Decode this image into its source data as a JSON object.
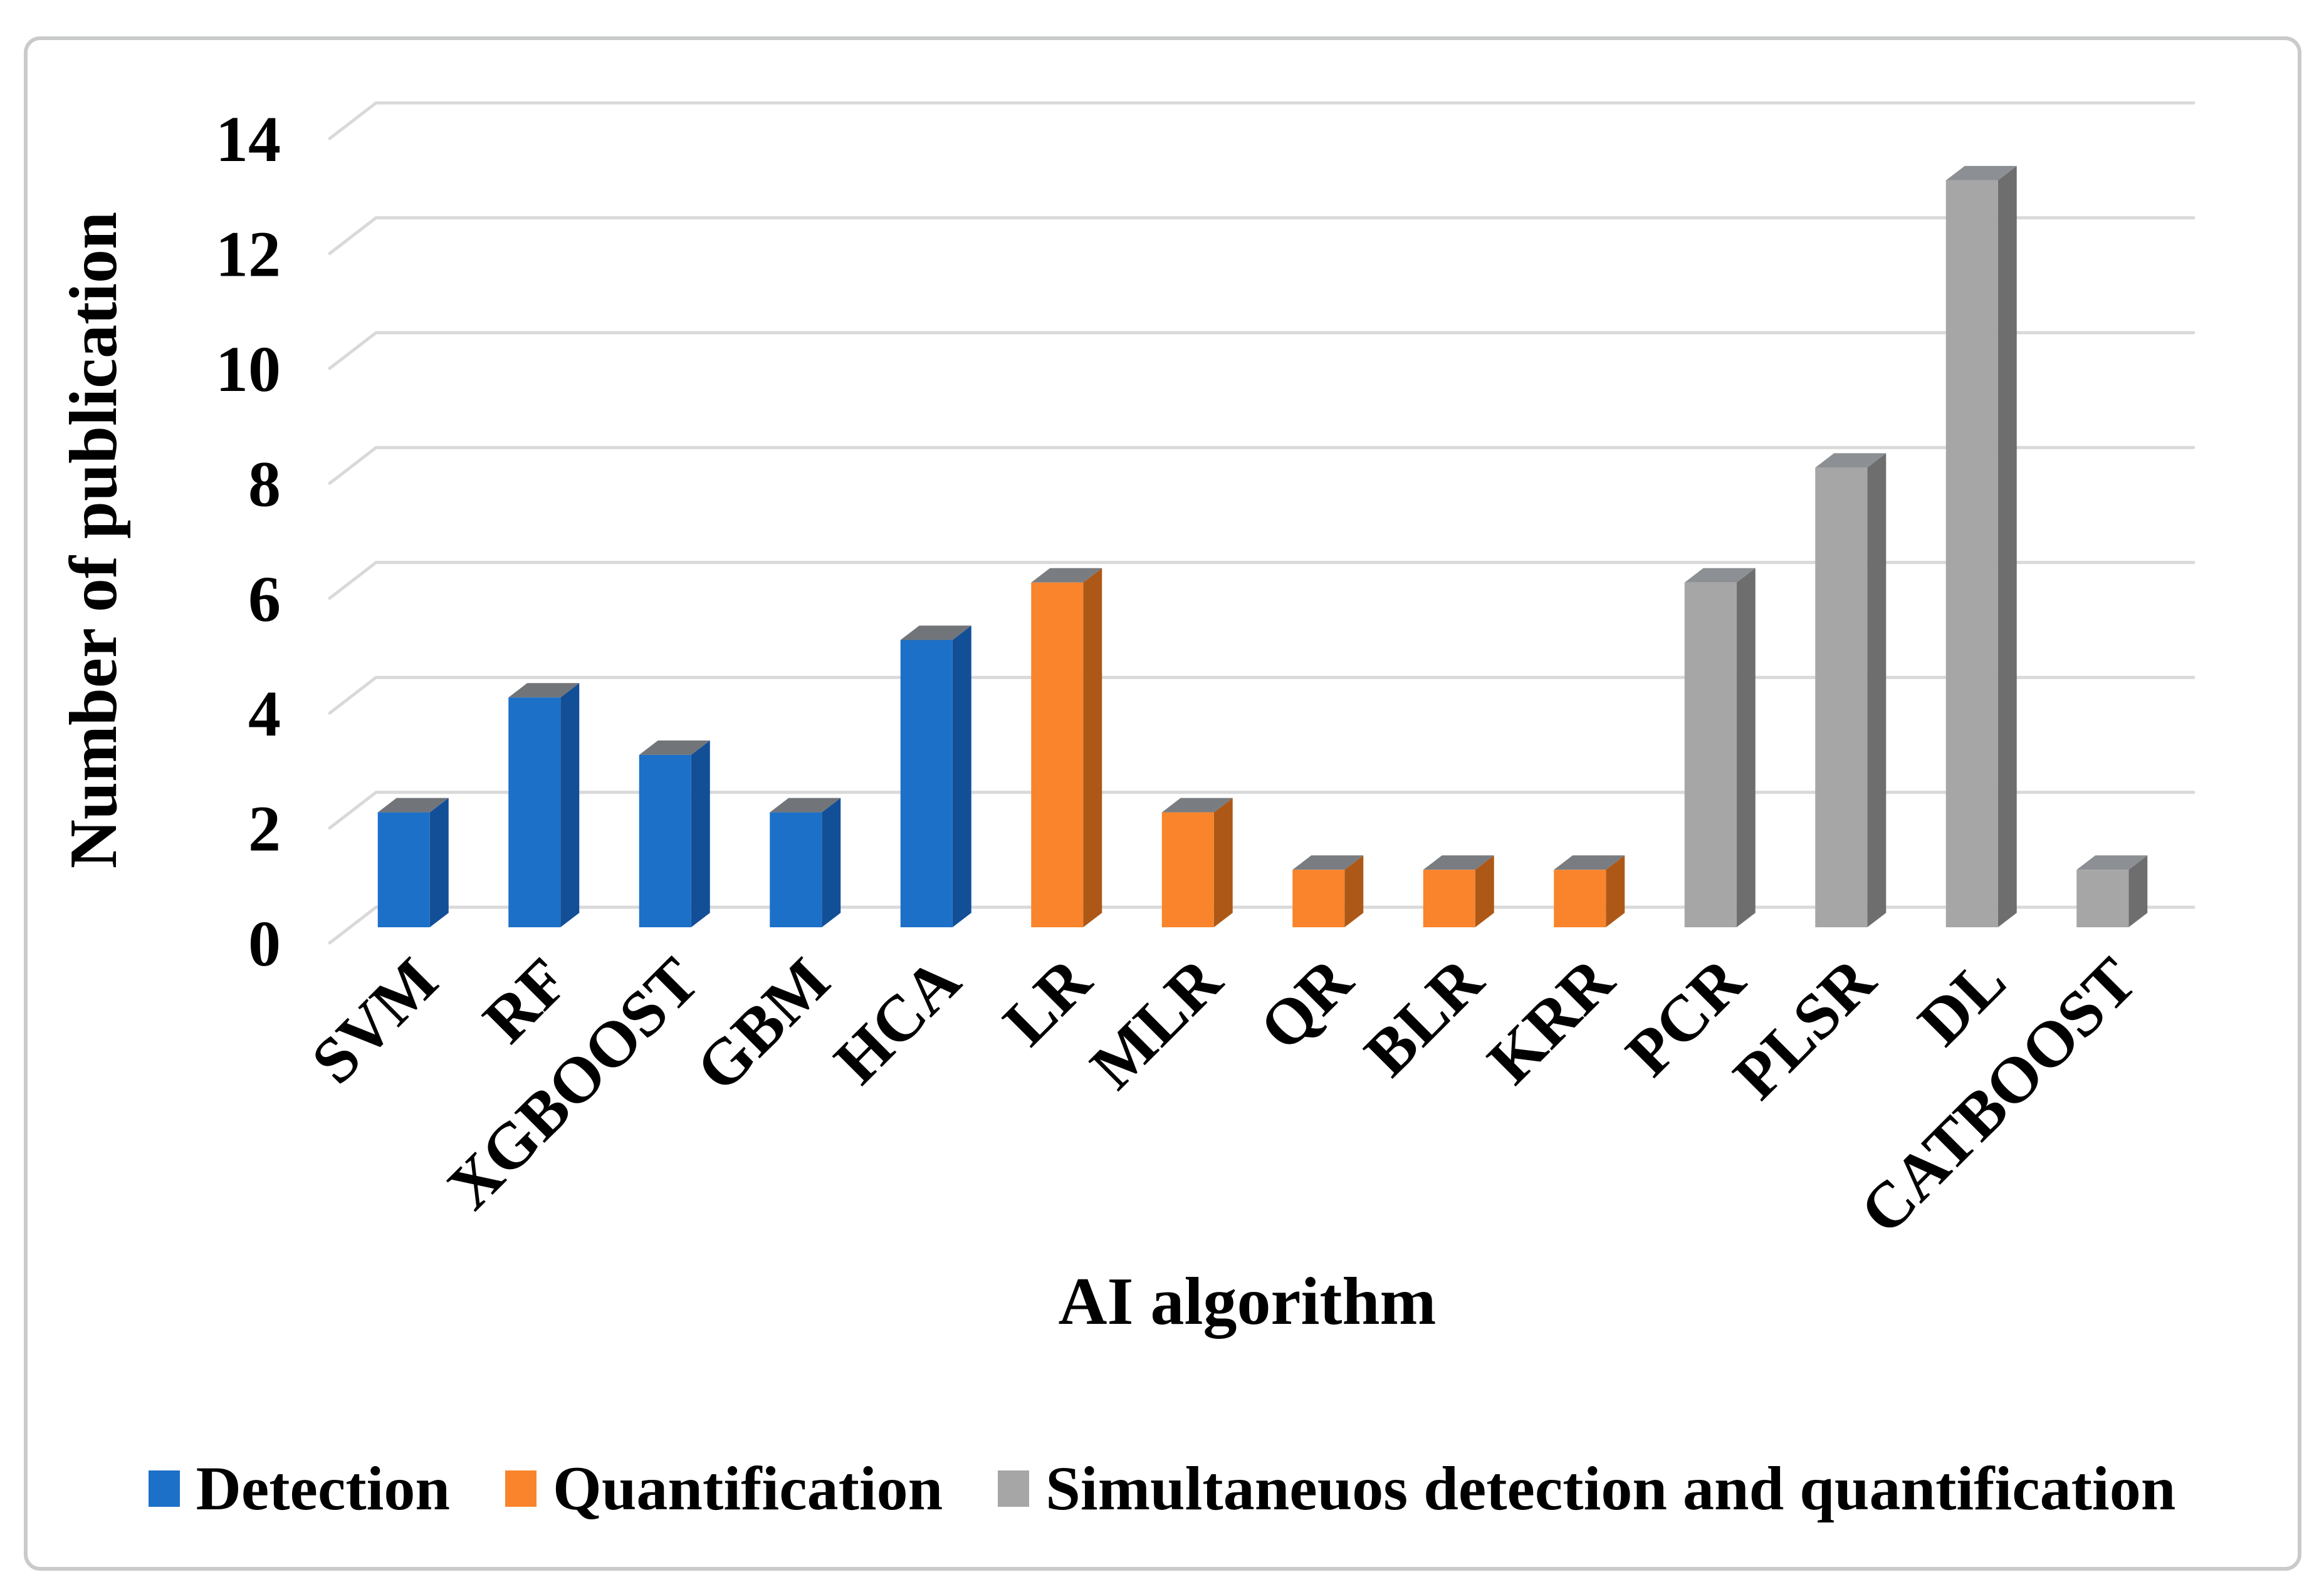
{
  "chart_data": {
    "type": "bar",
    "style": "3d",
    "title": "",
    "xlabel": "AI algorithm",
    "ylabel": "Number of publication",
    "ylim": [
      0,
      14
    ],
    "ytick_step": 2,
    "yticks": [
      0,
      2,
      4,
      6,
      8,
      10,
      12,
      14
    ],
    "grid": true,
    "grid_color": "#d9d9d9",
    "legend_position": "bottom",
    "categories": [
      "SVM",
      "RF",
      "XGBOOST",
      "GBM",
      "HCA",
      "LR",
      "MLR",
      "QR",
      "BLR",
      "KRR",
      "PCR",
      "PLSR",
      "DL",
      "CATBOOST"
    ],
    "values": [
      2,
      4,
      3,
      2,
      5,
      6,
      2,
      1,
      1,
      1,
      6,
      8,
      13,
      1
    ],
    "category_series": [
      "detection",
      "detection",
      "detection",
      "detection",
      "detection",
      "quantification",
      "quantification",
      "quantification",
      "quantification",
      "quantification",
      "simultaneous",
      "simultaneous",
      "simultaneous",
      "simultaneous"
    ],
    "legend": [
      {
        "id": "detection",
        "label": "Detection",
        "color": "#1c70c8",
        "side_color": "#124f97",
        "top_color": "#71757a"
      },
      {
        "id": "quantification",
        "label": "Quantification",
        "color": "#f9842c",
        "side_color": "#ad5816",
        "top_color": "#797d82"
      },
      {
        "id": "simultaneous",
        "label": "Simultaneuos detection and quantification",
        "color": "#a6a6a6",
        "side_color": "#6e6e6e",
        "top_color": "#8c8f93"
      }
    ]
  }
}
